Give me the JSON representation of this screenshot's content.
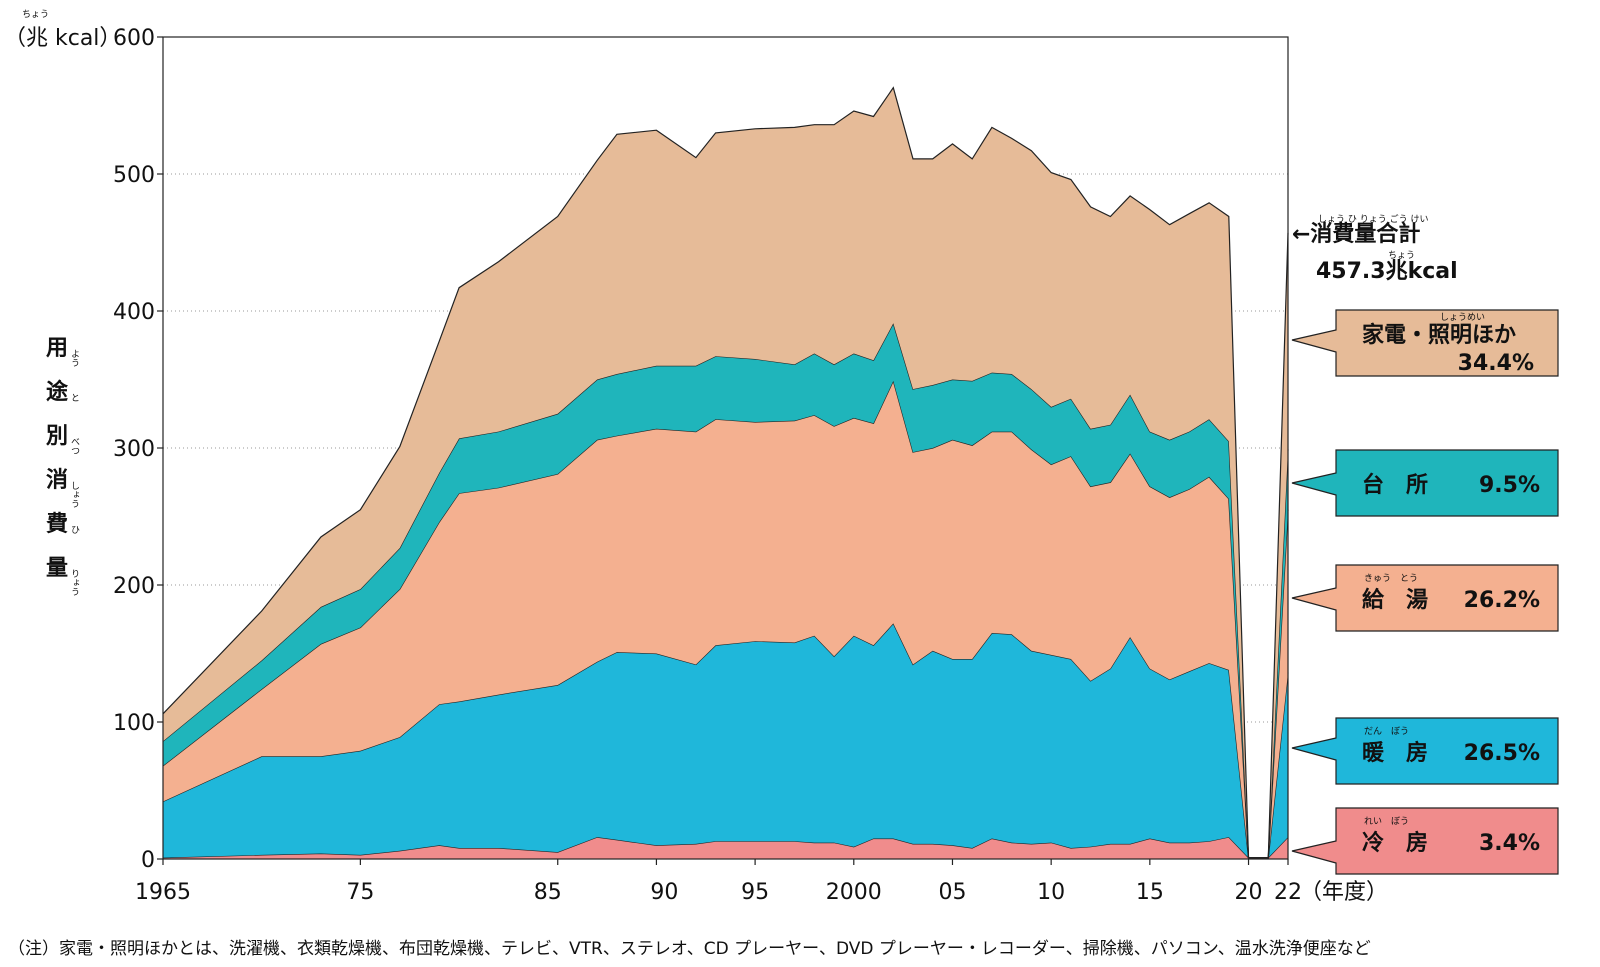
{
  "chart_data": {
    "type": "area",
    "stacked": true,
    "unit": "（兆 kcal）",
    "unit_ruby": "ちょう",
    "ylabel": "用途別消費量",
    "ylabel_chars": [
      "用",
      "途",
      "別",
      "消",
      "費",
      "量"
    ],
    "ylabel_ruby": [
      "よう",
      "と",
      "べつ",
      "しょう",
      "ひ",
      "りょう"
    ],
    "ylim": [
      0,
      600
    ],
    "yticks": [
      0,
      100,
      200,
      300,
      400,
      500,
      600
    ],
    "xlim": [
      1965,
      2022
    ],
    "xticks": [
      {
        "year": 1965,
        "label": "1965"
      },
      {
        "year": 1975,
        "label": "75"
      },
      {
        "year": 1985,
        "label": "85"
      },
      {
        "year": 1990,
        "label": "90"
      },
      {
        "year": 1995,
        "label": "95"
      },
      {
        "year": 2000,
        "label": "2000"
      },
      {
        "year": 2005,
        "label": "05"
      },
      {
        "year": 2010,
        "label": "10"
      },
      {
        "year": 2015,
        "label": "15"
      },
      {
        "year": 2020,
        "label": "20"
      },
      {
        "year": 2022,
        "label": "22"
      }
    ],
    "xunit": "（年度）",
    "grid": "dotted horizontal",
    "x": [
      1965,
      1970,
      1973,
      1975,
      1977,
      1979,
      1980,
      1982,
      1985,
      1987,
      1988,
      1990,
      1992,
      1993,
      1995,
      1997,
      1998,
      1999,
      2000,
      2001,
      2002,
      2003,
      2004,
      2005,
      2006,
      2007,
      2008,
      2009,
      2010,
      2011,
      2012,
      2013,
      2014,
      2015,
      2016,
      2017,
      2018,
      2019,
      2020,
      2021,
      2022
    ],
    "series": [
      {
        "name": "冷房",
        "color": "#f08c8c",
        "values": [
          1,
          3,
          4,
          3,
          6,
          10,
          8,
          8,
          5,
          16,
          14,
          10,
          11,
          13,
          13,
          13,
          12,
          12,
          9,
          15,
          15,
          11,
          11,
          10,
          8,
          15,
          12,
          11,
          12,
          8,
          9,
          11,
          11,
          15,
          12,
          12,
          13,
          16,
          1,
          1,
          16
        ]
      },
      {
        "name": "暖房",
        "color": "#1fb7da",
        "values": [
          41,
          72,
          71,
          76,
          83,
          103,
          107,
          112,
          122,
          128,
          137,
          140,
          131,
          143,
          146,
          145,
          151,
          136,
          154,
          141,
          157,
          131,
          141,
          136,
          138,
          150,
          152,
          141,
          137,
          138,
          121,
          128,
          151,
          124,
          119,
          125,
          130,
          122,
          0,
          0,
          120
        ]
      },
      {
        "name": "給湯",
        "color": "#f4b090",
        "values": [
          26,
          49,
          82,
          90,
          108,
          133,
          152,
          151,
          154,
          162,
          158,
          164,
          170,
          165,
          160,
          162,
          161,
          168,
          159,
          162,
          177,
          155,
          148,
          160,
          156,
          147,
          148,
          147,
          139,
          148,
          142,
          136,
          134,
          133,
          133,
          133,
          136,
          125,
          0,
          0,
          119
        ]
      },
      {
        "name": "台所",
        "color": "#1fb5bb",
        "values": [
          18,
          21,
          27,
          28,
          30,
          36,
          40,
          41,
          44,
          44,
          45,
          46,
          48,
          46,
          46,
          41,
          45,
          45,
          47,
          46,
          42,
          46,
          46,
          44,
          47,
          43,
          42,
          44,
          42,
          42,
          42,
          42,
          43,
          40,
          42,
          42,
          42,
          42,
          0,
          0,
          44
        ]
      },
      {
        "name": "家電・照明ほか",
        "color": "#e6bb98",
        "values": [
          20,
          36,
          51,
          58,
          74,
          96,
          110,
          124,
          144,
          160,
          175,
          172,
          152,
          163,
          168,
          173,
          167,
          175,
          177,
          178,
          172,
          168,
          165,
          172,
          162,
          179,
          172,
          174,
          171,
          160,
          162,
          152,
          145,
          162,
          157,
          159,
          158,
          164,
          0,
          0,
          158
        ]
      }
    ],
    "legend": [
      {
        "label": "家電・照明ほか",
        "ruby": "しょうめい",
        "pct": "34.4%"
      },
      {
        "label": "台　所",
        "ruby": "",
        "pct": "9.5%"
      },
      {
        "label": "給　湯",
        "ruby": "きゅう　とう",
        "pct": "26.2%"
      },
      {
        "label": "暖　房",
        "ruby": "だん　ぼう",
        "pct": "26.5%"
      },
      {
        "label": "冷　房",
        "ruby": "れい　ぼう",
        "pct": "3.4%"
      }
    ],
    "total_label": "←消費量合計",
    "total_ruby": "しょう ひ りょう ごう けい",
    "total_value": "457.3兆kcal",
    "total_value_ruby": "ちょう"
  },
  "note": "（注）家電・照明ほかとは、洗濯機、衣類乾燥機、布団乾燥機、テレビ、VTR、ステレオ、CD プレーヤー、DVD プレーヤー・レコーダー、掃除機、パソコン、温水洗浄便座など"
}
